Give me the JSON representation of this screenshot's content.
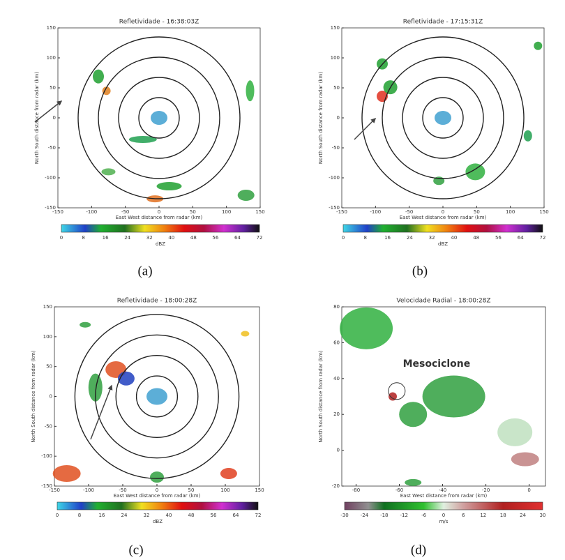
{
  "panels": [
    {
      "title": "Refletividade - 16:38:03Z",
      "xlabel": "East West distance from radar (km)",
      "ylabel": "North South distance from radar (km)",
      "xticks": [
        -150,
        -100,
        -50,
        0,
        50,
        100,
        150
      ],
      "yticks": [
        150,
        100,
        50,
        0,
        -50,
        -100,
        -150
      ],
      "colorbar_ticks": [
        0,
        8,
        16,
        24,
        32,
        40,
        48,
        56,
        64,
        72
      ],
      "colorbar_unit": "dBZ",
      "caption": "(a)"
    },
    {
      "title": "Refletividade - 17:15:31Z",
      "xlabel": "East West distance from radar (km)",
      "ylabel": "North South distance from radar (km)",
      "xticks": [
        -150,
        -100,
        -50,
        0,
        50,
        100,
        150
      ],
      "yticks": [
        150,
        100,
        50,
        0,
        -50,
        -100,
        -150
      ],
      "colorbar_ticks": [
        0,
        8,
        16,
        24,
        32,
        40,
        48,
        56,
        64,
        72
      ],
      "colorbar_unit": "dBZ",
      "caption": "(b)"
    },
    {
      "title": "Refletividade - 18:00:28Z",
      "xlabel": "East West distance from radar (km)",
      "ylabel": "North South distance from radar (km)",
      "xticks": [
        -150,
        -100,
        -50,
        0,
        50,
        100,
        150
      ],
      "yticks": [
        150,
        100,
        50,
        0,
        -50,
        -100,
        -150
      ],
      "colorbar_ticks": [
        0,
        8,
        16,
        24,
        32,
        40,
        48,
        56,
        64,
        72
      ],
      "colorbar_unit": "dBZ",
      "caption": "(c)"
    },
    {
      "title": "Velocidade Radial - 18:00:28Z",
      "xlabel": "East West distance from radar (km)",
      "ylabel": "North South distance from radar (km)",
      "xticks": [
        -80,
        -60,
        -40,
        -20,
        0
      ],
      "yticks": [
        80,
        60,
        40,
        20,
        0,
        -20
      ],
      "colorbar_ticks": [
        -30,
        -24,
        -18,
        -12,
        -6,
        0,
        6,
        12,
        18,
        24,
        30
      ],
      "colorbar_unit": "m/s",
      "caption": "(d)",
      "annotation": "Mesociclone"
    }
  ]
}
